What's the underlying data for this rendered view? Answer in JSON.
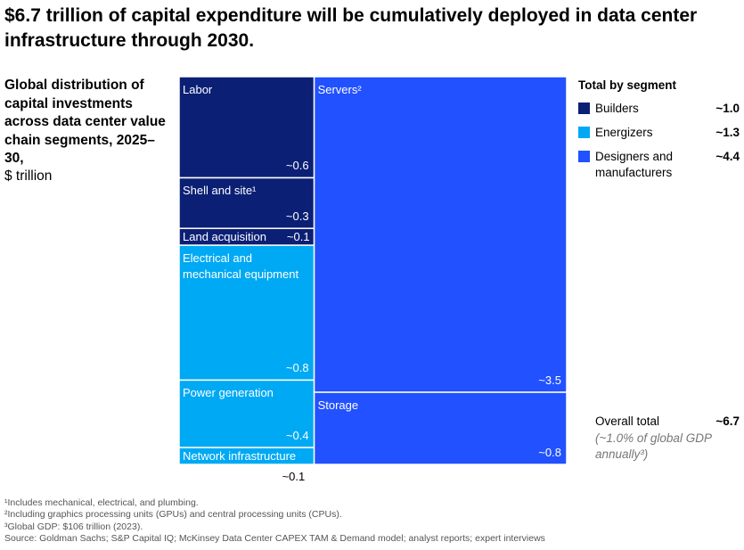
{
  "chart_data": {
    "type": "treemap",
    "title": "$6.7 trillion of capital expenditure will be cumulatively deployed in data center infrastructure through 2030.",
    "subtitle": "Global distribution of capital investments across data center value chain segments, 2025–30,",
    "unit": "$ trillion",
    "legend_title": "Total by segment",
    "segments": [
      {
        "name": "Builders",
        "color": "#0b1f75",
        "total": 1.0,
        "total_label": "~1.0",
        "categories": [
          "Labor",
          "Shell and site¹",
          "Land acquisition"
        ],
        "values": [
          0.6,
          0.3,
          0.1
        ],
        "value_labels": [
          "~0.6",
          "~0.3",
          "~0.1"
        ]
      },
      {
        "name": "Energizers",
        "color": "#00a9f4",
        "total": 1.3,
        "total_label": "~1.3",
        "categories": [
          "Electrical and mechanical equipment",
          "Power generation",
          "Network infrastructure"
        ],
        "values": [
          0.8,
          0.4,
          0.1
        ],
        "value_labels": [
          "~0.8",
          "~0.4",
          "~0.1"
        ]
      },
      {
        "name": "Designers and manufacturers",
        "color": "#2251ff",
        "total": 4.4,
        "total_label": "~4.4",
        "categories": [
          "Servers²",
          "Storage"
        ],
        "values": [
          3.5,
          0.8
        ],
        "value_labels": [
          "~3.5",
          "~0.8"
        ]
      }
    ],
    "overall_label": "Overall total",
    "overall_total": 6.7,
    "overall_total_label": "~6.7",
    "overall_note": "(~1.0% of global GDP annually³)",
    "footnotes": [
      "¹Includes mechanical, electrical, and plumbing.",
      "²Including graphics processing units (GPUs) and central processing units (CPUs).",
      "³Global GDP: $106 trillion (2023).",
      "Source: Goldman Sachs; S&P Capital IQ; McKinsey Data Center CAPEX TAM & Demand model; analyst reports; expert interviews"
    ]
  }
}
